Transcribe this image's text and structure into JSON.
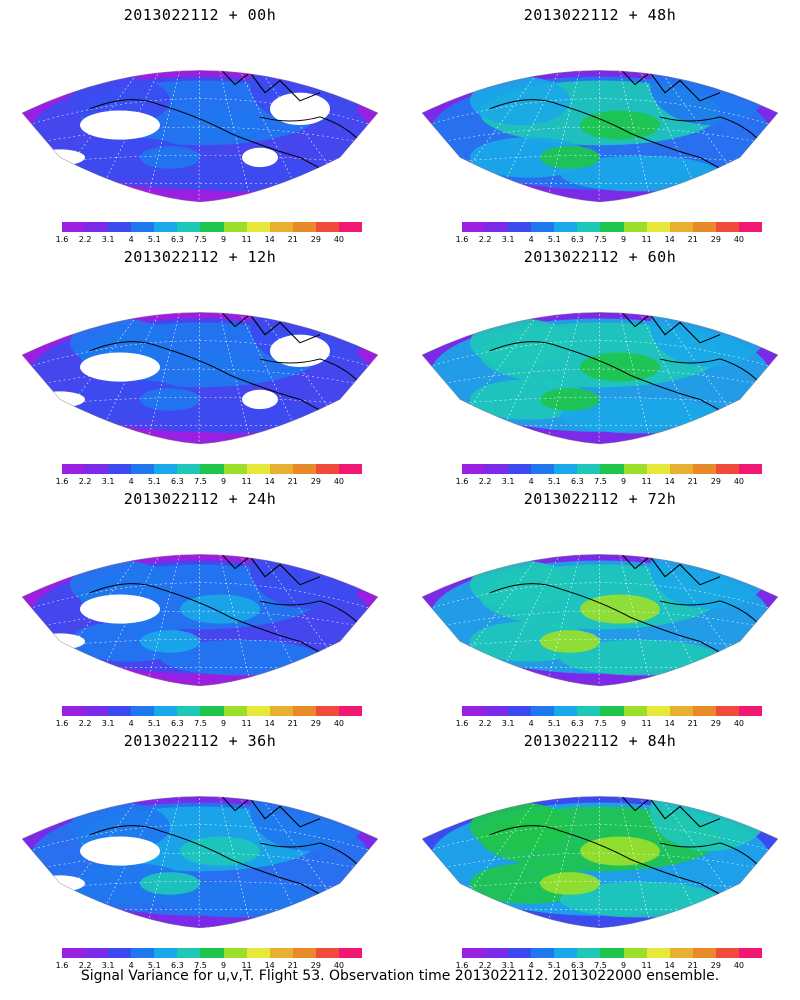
{
  "colorbar": {
    "levels": [
      "1.6",
      "2.2",
      "3.1",
      "4",
      "5.1",
      "6.3",
      "7.5",
      "9",
      "11",
      "14",
      "21",
      "29",
      "40"
    ],
    "colors": [
      "#9a1fe0",
      "#7b2be8",
      "#3c4af0",
      "#1f78f0",
      "#19a8e8",
      "#1ec8b8",
      "#1fc44a",
      "#9ae02a",
      "#e8e83a",
      "#e8b030",
      "#e88a2c",
      "#f04a3a",
      "#f01870"
    ]
  },
  "panels": [
    {
      "title": "2013022112 + 00h"
    },
    {
      "title": "2013022112 + 48h"
    },
    {
      "title": "2013022112 + 12h"
    },
    {
      "title": "2013022112 + 60h"
    },
    {
      "title": "2013022112 + 24h"
    },
    {
      "title": "2013022112 + 72h"
    },
    {
      "title": "2013022112 + 36h"
    },
    {
      "title": "2013022112 + 84h"
    }
  ],
  "caption": "Signal Variance for u,v,T. Flight 53. Observation time 2013022112. 2013022000 ensemble."
}
